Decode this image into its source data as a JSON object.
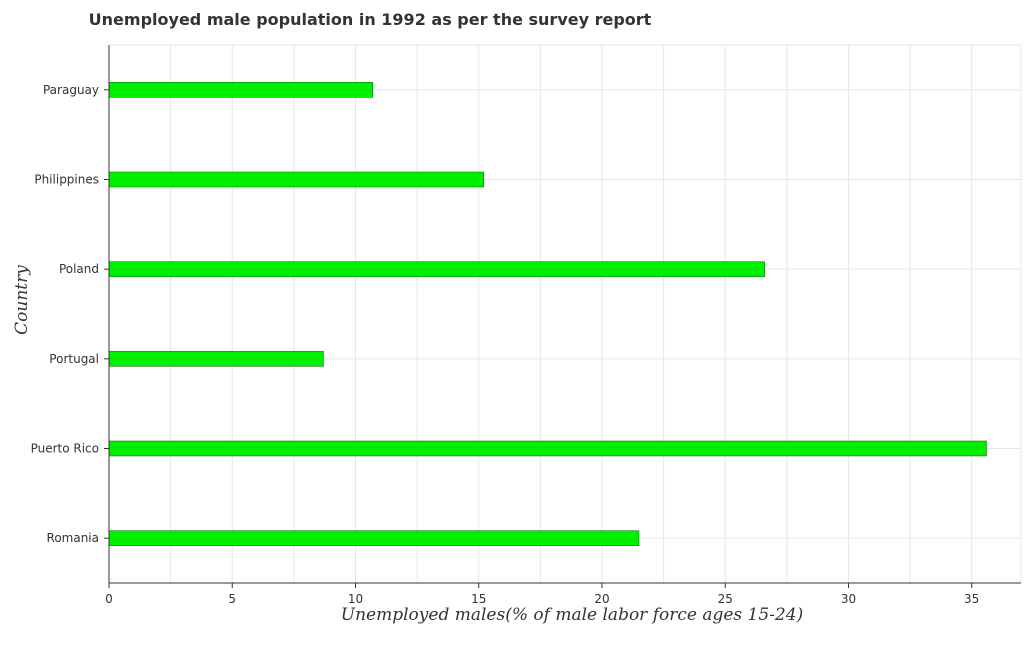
{
  "chart_data": {
    "type": "bar",
    "orientation": "horizontal",
    "title": "Unemployed male population in 1992 as per the survey report",
    "xlabel": "Unemployed males(% of male labor force ages 15-24)",
    "ylabel": "Country",
    "categories": [
      "Paraguay",
      "Philippines",
      "Poland",
      "Portugal",
      "Puerto Rico",
      "Romania"
    ],
    "series": [
      {
        "values": [
          10.7,
          15.2,
          26.6,
          8.7,
          35.6,
          21.5
        ]
      }
    ],
    "xlim": [
      0,
      37
    ],
    "xticks": [
      0,
      5,
      10,
      15,
      20,
      25,
      30,
      35
    ],
    "xtick_labels": [
      "0",
      "5",
      "10",
      "15",
      "20",
      "25",
      "30",
      "35"
    ],
    "grid": true,
    "colors": {
      "bar": "#00ee00",
      "bar_edge": "#006400"
    }
  }
}
